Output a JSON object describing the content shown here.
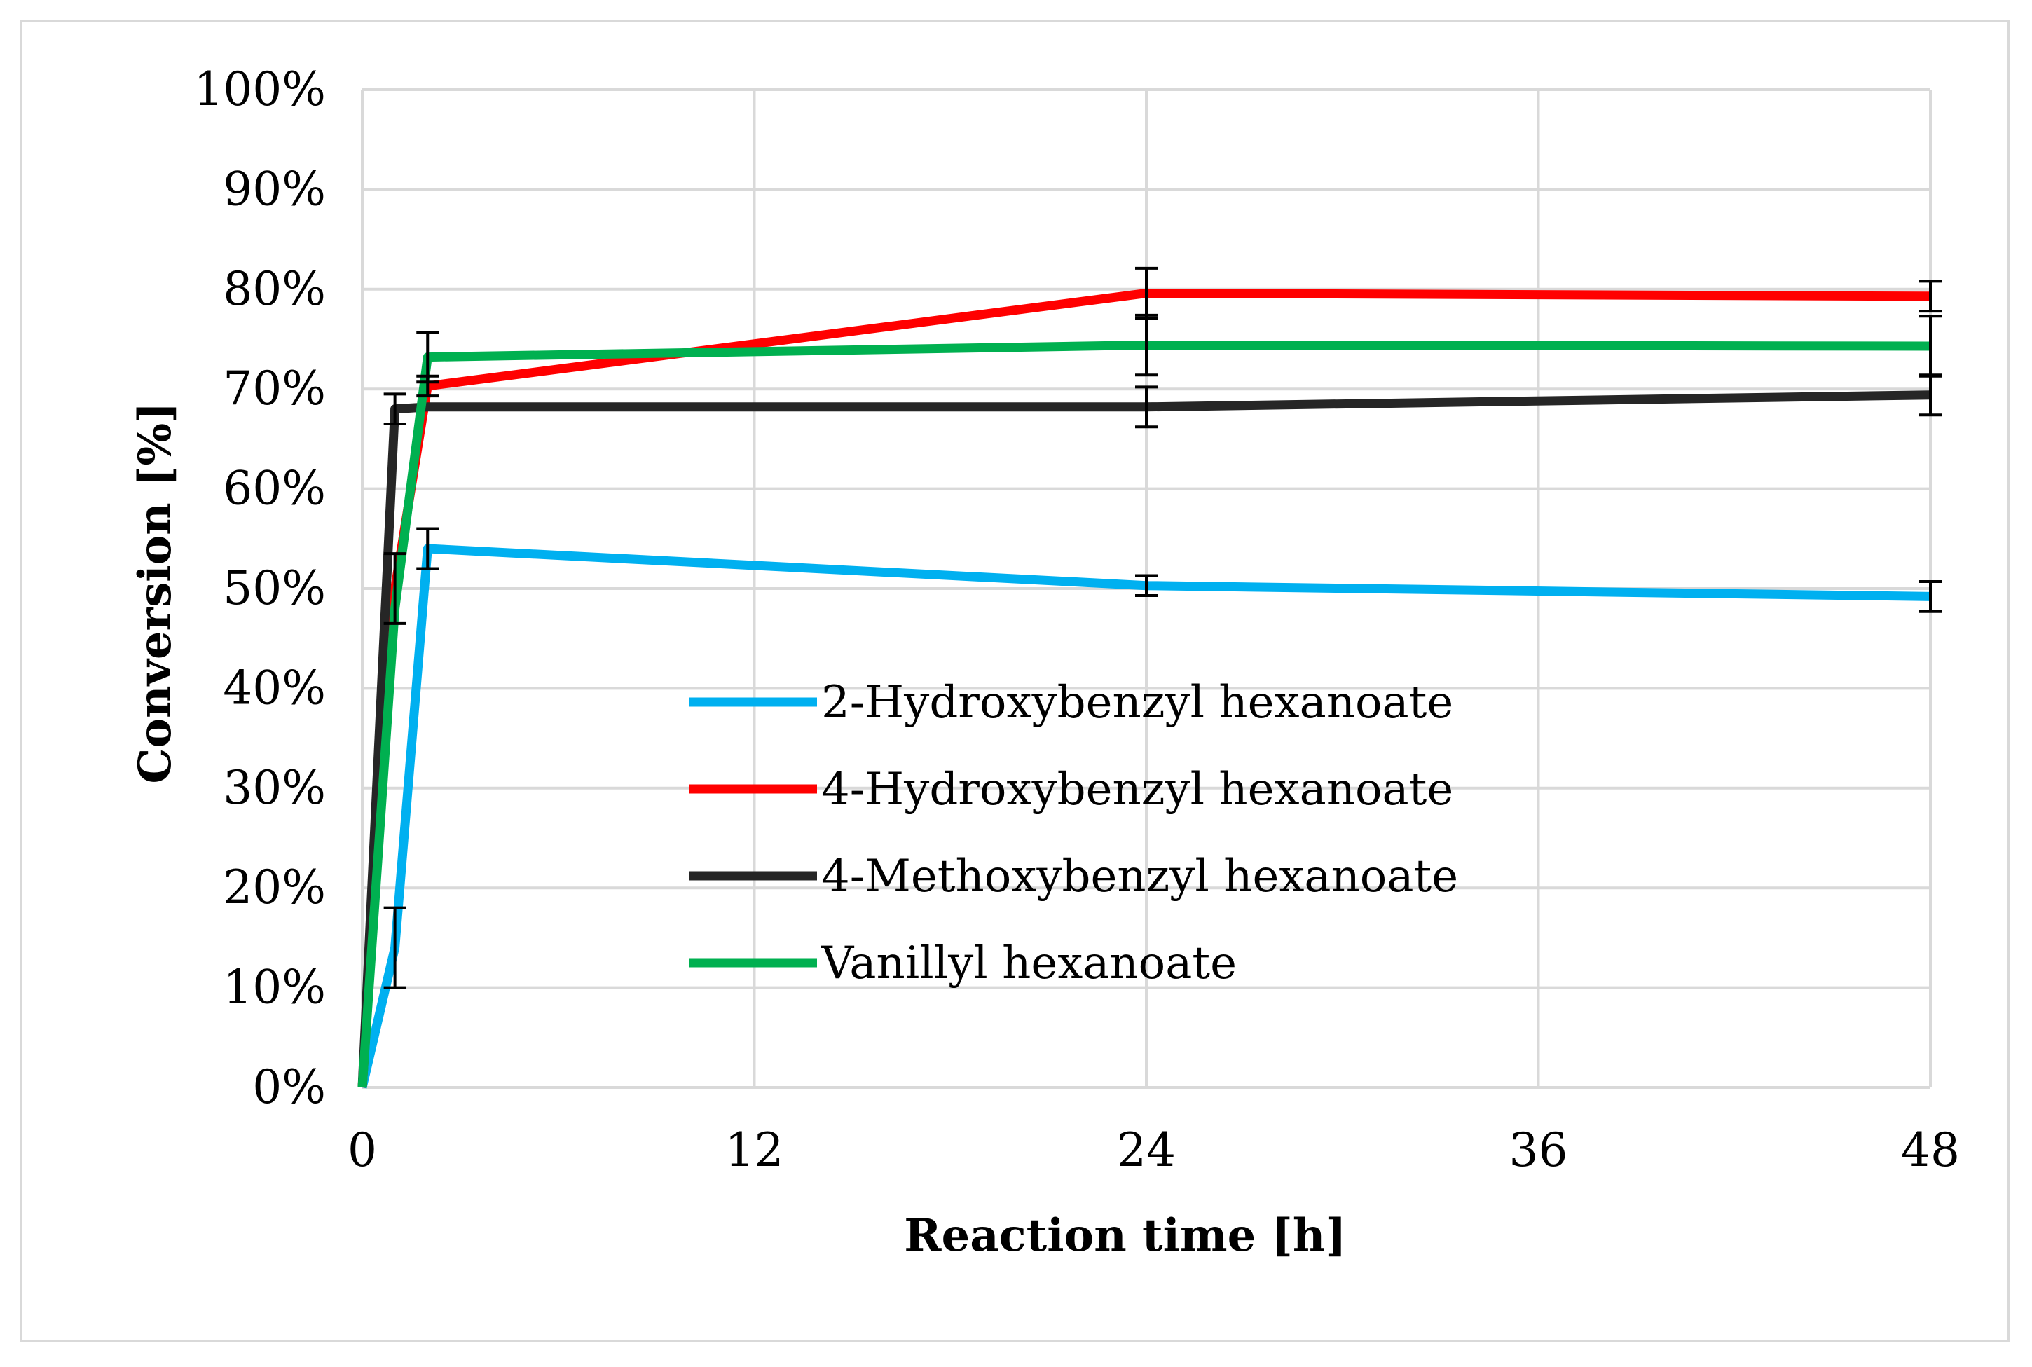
{
  "chart_data": {
    "type": "line",
    "title": "",
    "xlabel": "Reaction time [h]",
    "ylabel": "Conversion [%]",
    "xlim": [
      0,
      48
    ],
    "ylim": [
      0,
      100
    ],
    "x_ticks": [
      0,
      12,
      24,
      36,
      48
    ],
    "x_tick_labels": [
      "0",
      "12",
      "24",
      "36",
      "48"
    ],
    "y_ticks": [
      0,
      10,
      20,
      30,
      40,
      50,
      60,
      70,
      80,
      90,
      100
    ],
    "y_tick_labels": [
      "0%",
      "10%",
      "20%",
      "30%",
      "40%",
      "50%",
      "60%",
      "70%",
      "80%",
      "90%",
      "100%"
    ],
    "grid": true,
    "legend_position": "center",
    "series": [
      {
        "name": "2-Hydroxybenzyl hexanoate",
        "color": "#00b0f0",
        "x": [
          0,
          1,
          2,
          24,
          48
        ],
        "values": [
          0,
          14,
          54,
          50.3,
          49.2
        ],
        "errors": [
          0,
          4,
          2,
          1,
          1.5
        ]
      },
      {
        "name": "4-Hydroxybenzyl hexanoate",
        "color": "#ff0000",
        "x": [
          0,
          1,
          2,
          24,
          48
        ],
        "values": [
          0,
          50,
          70.3,
          79.6,
          79.3
        ],
        "errors": [
          0,
          3.5,
          1,
          2.5,
          1.5
        ]
      },
      {
        "name": "4-Methoxybenzyl hexanoate",
        "color": "#262626",
        "x": [
          0,
          1,
          2,
          24,
          48
        ],
        "values": [
          0,
          68,
          68.2,
          68.2,
          69.4
        ],
        "errors": [
          0,
          1.5,
          0,
          2,
          2
        ]
      },
      {
        "name": "Vanillyl hexanoate",
        "color": "#00b050",
        "x": [
          0,
          1,
          2,
          24,
          48
        ],
        "values": [
          0,
          48,
          73.2,
          74.4,
          74.3
        ],
        "errors": [
          0,
          0,
          2.5,
          3,
          3
        ]
      }
    ]
  }
}
